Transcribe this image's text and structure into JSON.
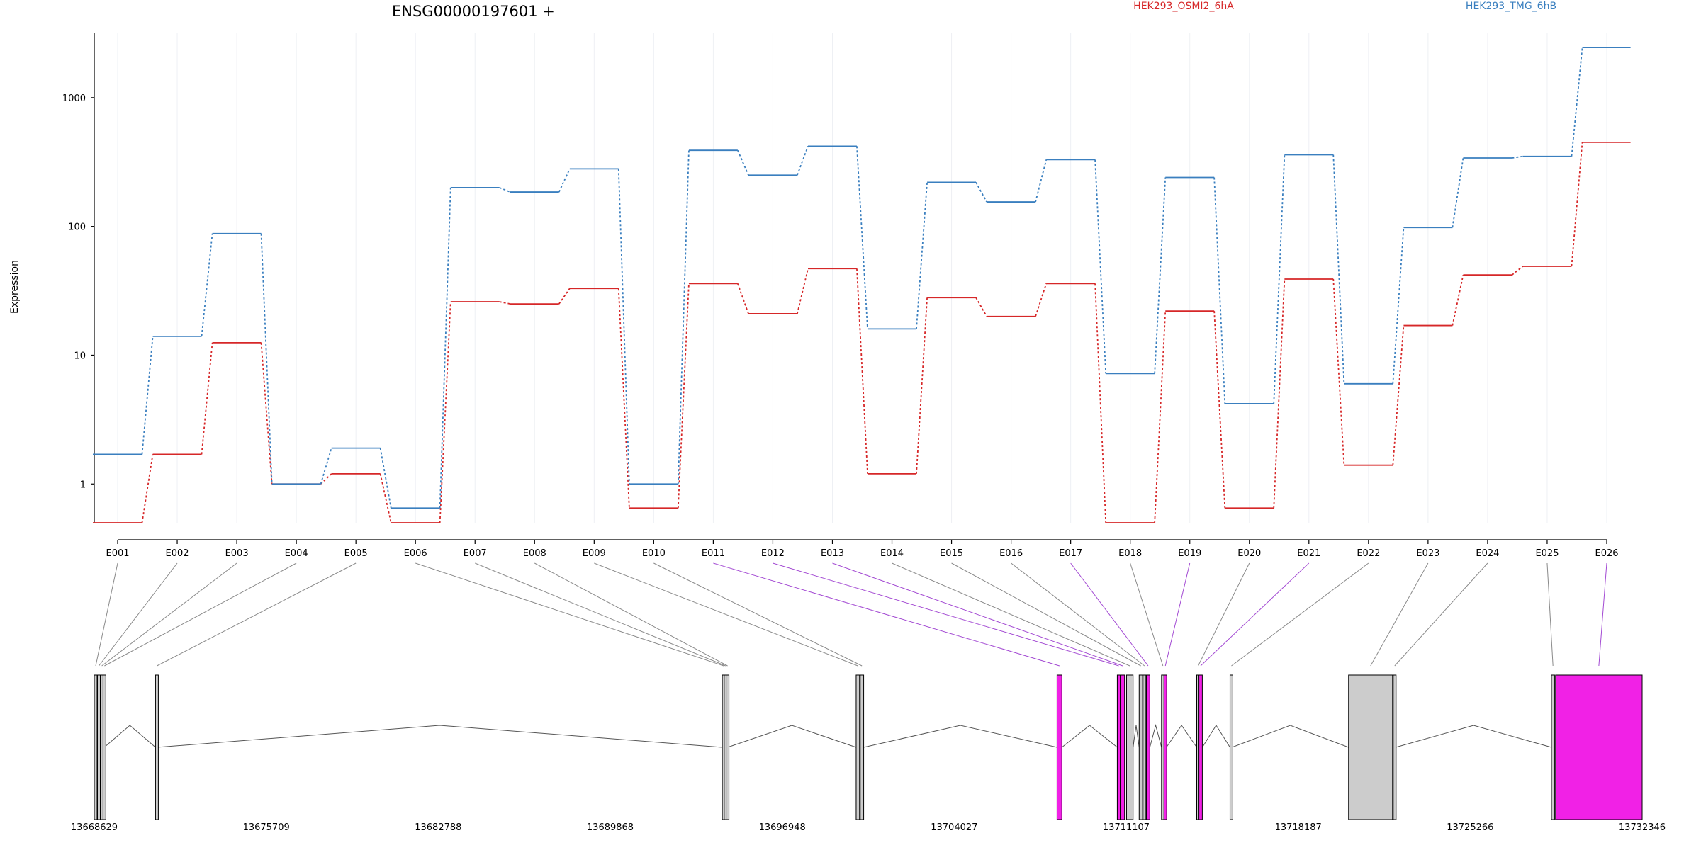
{
  "chart_data": {
    "type": "line",
    "title": "ENSG00000197601 +",
    "ylabel": "Expression",
    "xlabel": "",
    "yscale": "log",
    "ylim": [
      0.5,
      3200
    ],
    "yticks": [
      1,
      10,
      100,
      1000
    ],
    "yticklabels": [
      "1",
      "10",
      "100",
      "1000"
    ],
    "grid": true,
    "legend_position": "top",
    "categories": [
      "E001",
      "E002",
      "E003",
      "E004",
      "E005",
      "E006",
      "E007",
      "E008",
      "E009",
      "E010",
      "E011",
      "E012",
      "E013",
      "E014",
      "E015",
      "E016",
      "E017",
      "E018",
      "E019",
      "E020",
      "E021",
      "E022",
      "E023",
      "E024",
      "E025",
      "E026"
    ],
    "series": [
      {
        "name": "HEK293_OSMI2_6hA",
        "color": "#d62728",
        "values": [
          0.5,
          1.7,
          12.5,
          1.0,
          1.2,
          0.5,
          26,
          25,
          33,
          0.65,
          36,
          21,
          47,
          1.2,
          28,
          20,
          36,
          0.5,
          22,
          0.65,
          39,
          1.4,
          17,
          42,
          49,
          450
        ]
      },
      {
        "name": "HEK293_TMG_6hB",
        "color": "#3a7fbf",
        "values": [
          1.7,
          14,
          88,
          1.0,
          1.9,
          0.65,
          200,
          185,
          280,
          1.0,
          390,
          250,
          420,
          16,
          220,
          155,
          330,
          7.2,
          240,
          4.2,
          360,
          6.0,
          98,
          340,
          350,
          2450
        ]
      }
    ],
    "gene_model": {
      "coordinate_ticks": [
        "13668629",
        "13675709",
        "13682788",
        "13689868",
        "13696948",
        "13704027",
        "13711107",
        "13718187",
        "13725266",
        "13732346"
      ],
      "range": [
        13668629,
        13732346
      ],
      "exons": [
        {
          "id": "E001",
          "start": 13668629,
          "end": 13668700,
          "fill": "#cccccc",
          "highlight": false
        },
        {
          "id": "E002",
          "start": 13668760,
          "end": 13668820,
          "fill": "#cccccc",
          "highlight": false
        },
        {
          "id": "E003",
          "start": 13668880,
          "end": 13668960,
          "fill": "#cccccc",
          "highlight": false
        },
        {
          "id": "E004",
          "start": 13668990,
          "end": 13669040,
          "fill": "#cccccc",
          "highlight": false
        },
        {
          "id": "E005",
          "start": 13671150,
          "end": 13671220,
          "fill": "#cccccc",
          "highlight": false
        },
        {
          "id": "E006",
          "start": 13694480,
          "end": 13694550,
          "fill": "#cccccc",
          "highlight": false
        },
        {
          "id": "E007",
          "start": 13694560,
          "end": 13694630,
          "fill": "#cccccc",
          "highlight": false
        },
        {
          "id": "E008",
          "start": 13694640,
          "end": 13694700,
          "fill": "#cccccc",
          "highlight": false
        },
        {
          "id": "E009",
          "start": 13699990,
          "end": 13700130,
          "fill": "#cccccc",
          "highlight": false
        },
        {
          "id": "E010",
          "start": 13700160,
          "end": 13700300,
          "fill": "#cccccc",
          "highlight": false
        },
        {
          "id": "E011",
          "start": 13708260,
          "end": 13708460,
          "fill": "#f121e6",
          "highlight": true
        },
        {
          "id": "E012",
          "start": 13710740,
          "end": 13710860,
          "fill": "#f121e6",
          "highlight": true
        },
        {
          "id": "E013",
          "start": 13710880,
          "end": 13711040,
          "fill": "#f121e6",
          "highlight": true
        },
        {
          "id": "E014",
          "start": 13711120,
          "end": 13711390,
          "fill": "#cccccc",
          "highlight": false
        },
        {
          "id": "E015",
          "start": 13711640,
          "end": 13711780,
          "fill": "#cccccc",
          "highlight": false
        },
        {
          "id": "E016",
          "start": 13711800,
          "end": 13711920,
          "fill": "#cccccc",
          "highlight": false
        },
        {
          "id": "E017",
          "start": 13711940,
          "end": 13712080,
          "fill": "#f121e6",
          "highlight": true
        },
        {
          "id": "E018",
          "start": 13712560,
          "end": 13712640,
          "fill": "#cccccc",
          "highlight": false
        },
        {
          "id": "E019",
          "start": 13712660,
          "end": 13712760,
          "fill": "#f121e6",
          "highlight": true
        },
        {
          "id": "E020",
          "start": 13714010,
          "end": 13714080,
          "fill": "#cccccc",
          "highlight": false
        },
        {
          "id": "E021",
          "start": 13714100,
          "end": 13714240,
          "fill": "#f121e6",
          "highlight": true
        },
        {
          "id": "E022",
          "start": 13715380,
          "end": 13715460,
          "fill": "#cccccc",
          "highlight": false
        },
        {
          "id": "E023",
          "start": 13720260,
          "end": 13722070,
          "fill": "#cccccc",
          "highlight": false
        },
        {
          "id": "E024",
          "start": 13722100,
          "end": 13722200,
          "fill": "#cccccc",
          "highlight": false
        },
        {
          "id": "E025",
          "start": 13728610,
          "end": 13728740,
          "fill": "#cccccc",
          "highlight": false
        },
        {
          "id": "E026",
          "start": 13728780,
          "end": 13732346,
          "fill": "#f121e6",
          "highlight": true
        }
      ]
    }
  }
}
